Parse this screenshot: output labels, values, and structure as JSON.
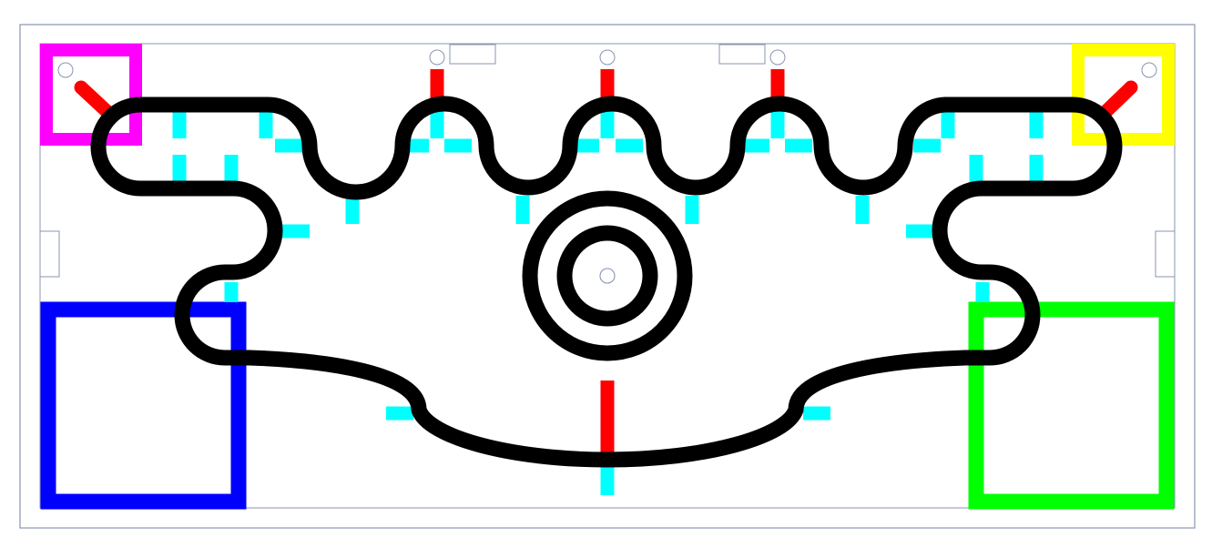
{
  "colors": {
    "background": "#ffffff",
    "border": "#8a94b0",
    "track": "#000000",
    "marker_red": "#ff0000",
    "marker_cyan": "#00ffff",
    "zone_magenta": "#ff00ff",
    "zone_yellow": "#ffff00",
    "zone_blue": "#0000ff",
    "zone_green": "#00ff00"
  },
  "zones": [
    {
      "name": "magenta",
      "color_key": "zone_magenta"
    },
    {
      "name": "yellow",
      "color_key": "zone_yellow"
    },
    {
      "name": "blue",
      "color_key": "zone_blue"
    },
    {
      "name": "green",
      "color_key": "zone_green"
    }
  ]
}
